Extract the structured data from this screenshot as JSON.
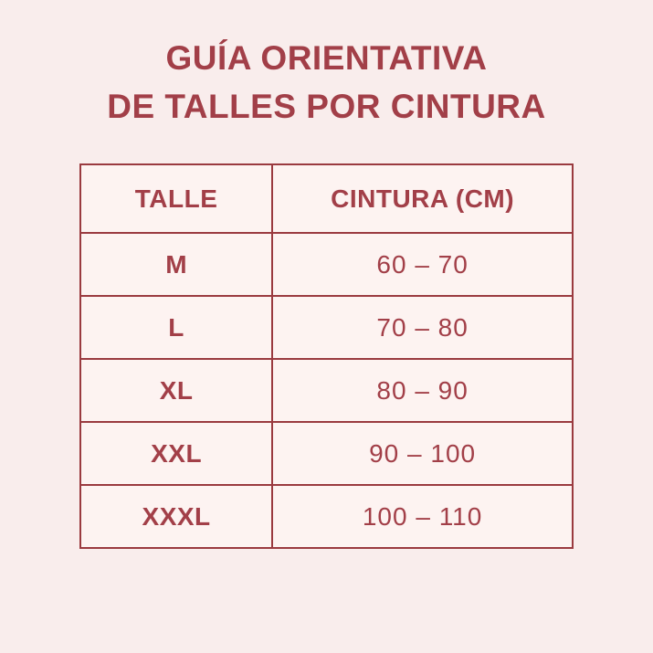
{
  "title": {
    "line1": "GUÍA ORIENTATIVA",
    "line2": "DE TALLES POR CINTURA"
  },
  "table": {
    "headers": [
      "TALLE",
      "CINTURA (CM)"
    ],
    "rows": [
      {
        "size": "M",
        "waist": "60 – 70"
      },
      {
        "size": "L",
        "waist": "70 – 80"
      },
      {
        "size": "XL",
        "waist": "80 – 90"
      },
      {
        "size": "XXL",
        "waist": "90 – 100"
      },
      {
        "size": "XXXL",
        "waist": "100 – 110"
      }
    ]
  },
  "colors": {
    "page_background": "#f9edec",
    "cell_background": "#fdf3f1",
    "accent_red_text": "#a23f48",
    "border_red": "#9a3a3f"
  },
  "chart_data": {
    "type": "table",
    "title": "GUÍA ORIENTATIVA DE TALLES POR CINTURA",
    "columns": [
      "TALLE",
      "CINTURA (CM)"
    ],
    "rows": [
      [
        "M",
        "60 – 70"
      ],
      [
        "L",
        "70 – 80"
      ],
      [
        "XL",
        "80 – 90"
      ],
      [
        "XXL",
        "90 – 100"
      ],
      [
        "XXXL",
        "100 – 110"
      ]
    ],
    "waist_ranges_cm": [
      [
        60,
        70
      ],
      [
        70,
        80
      ],
      [
        80,
        90
      ],
      [
        90,
        100
      ],
      [
        100,
        110
      ]
    ]
  }
}
